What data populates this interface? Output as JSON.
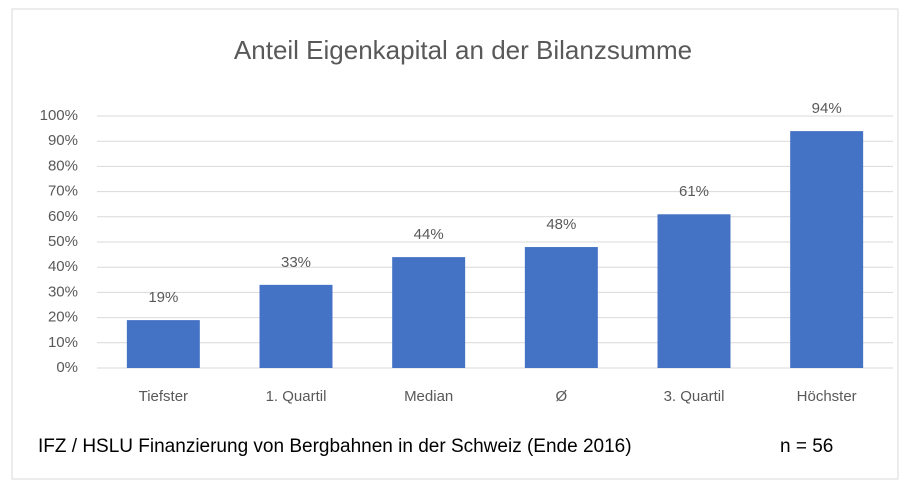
{
  "chart_data": {
    "type": "bar",
    "title": "Anteil Eigenkapital an der Bilanzsumme",
    "categories": [
      "Tiefster",
      "1. Quartil",
      "Median",
      "Ø",
      "3. Quartil",
      "Höchster"
    ],
    "values": [
      19,
      33,
      44,
      48,
      61,
      94
    ],
    "value_labels": [
      "19%",
      "33%",
      "44%",
      "48%",
      "61%",
      "94%"
    ],
    "color": "#4472c4",
    "ylim": [
      0,
      100
    ],
    "yticks": [
      {
        "value": 0,
        "label": "0%"
      },
      {
        "value": 10,
        "label": "10%"
      },
      {
        "value": 20,
        "label": "20%"
      },
      {
        "value": 30,
        "label": "30%"
      },
      {
        "value": 40,
        "label": "40%"
      },
      {
        "value": 50,
        "label": "50%"
      },
      {
        "value": 60,
        "label": "60%"
      },
      {
        "value": 70,
        "label": "70%"
      },
      {
        "value": 80,
        "label": "80%"
      },
      {
        "value": 90,
        "label": "90%"
      },
      {
        "value": 100,
        "label": "100%"
      }
    ],
    "grid": true,
    "source": "IFZ / HSLU Finanzierung von Bergbahnen in der Schweiz (Ende 2016)",
    "annotation": "n = 56"
  }
}
